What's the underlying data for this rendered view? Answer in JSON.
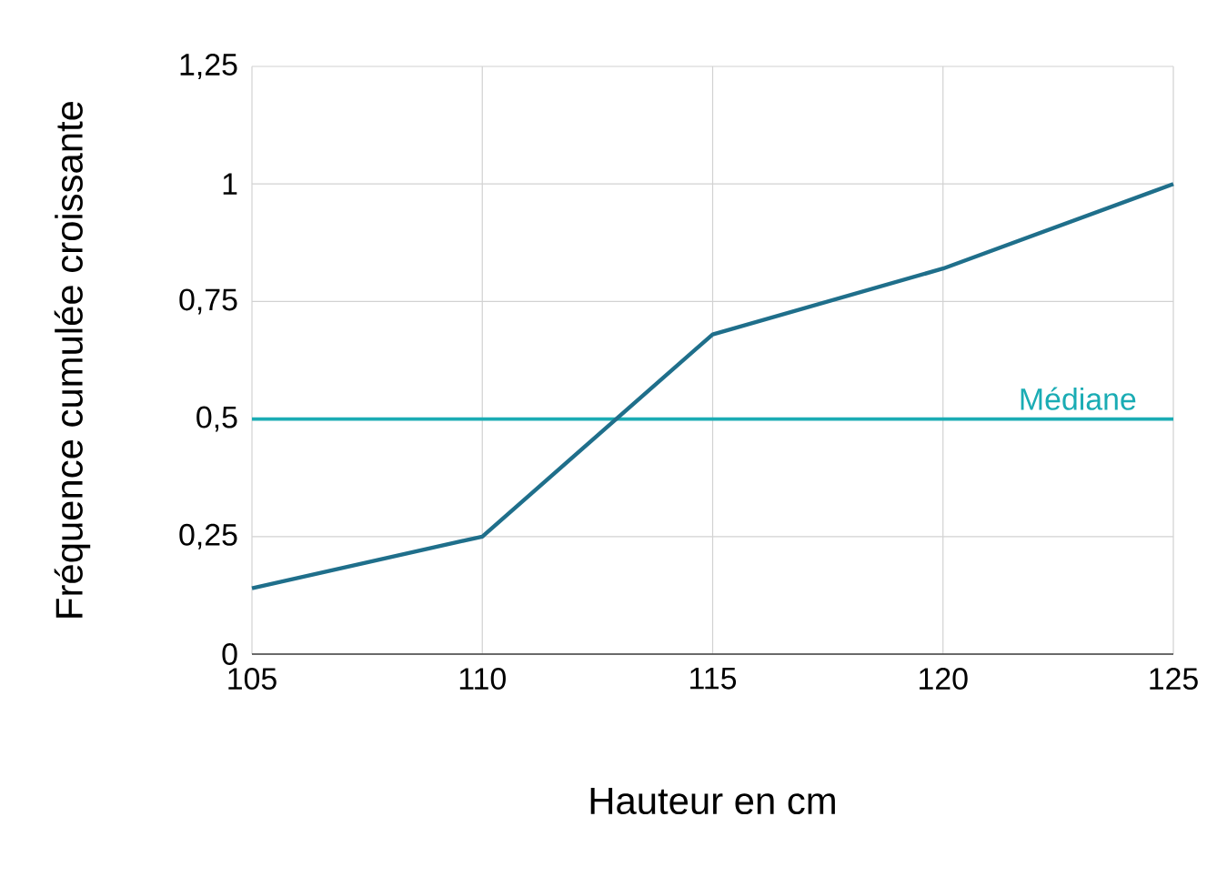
{
  "chart_data": {
    "type": "line",
    "xlabel": "Hauteur en cm",
    "ylabel": "Fréquence cumulée croissante",
    "x": [
      105,
      110,
      115,
      120,
      125
    ],
    "series": [
      {
        "color": "#1f6f8b",
        "values": [
          0.14,
          0.25,
          0.68,
          0.82,
          1.0
        ]
      }
    ],
    "xlim": [
      105,
      125
    ],
    "xticks": [
      105,
      110,
      115,
      120,
      125
    ],
    "ylim": [
      0,
      1.25
    ],
    "yticks": [
      0,
      {
        "value": 0.25,
        "label": "0,25"
      },
      {
        "value": 0.5,
        "label": "0,5"
      },
      {
        "value": 0.75,
        "label": "0,75"
      },
      1,
      {
        "value": 1.25,
        "label": "1,25"
      }
    ],
    "ref_lines": [
      {
        "axis": "y",
        "value": 0.5,
        "label": "Médiane",
        "color": "#1aacb4"
      }
    ],
    "grid": true
  }
}
